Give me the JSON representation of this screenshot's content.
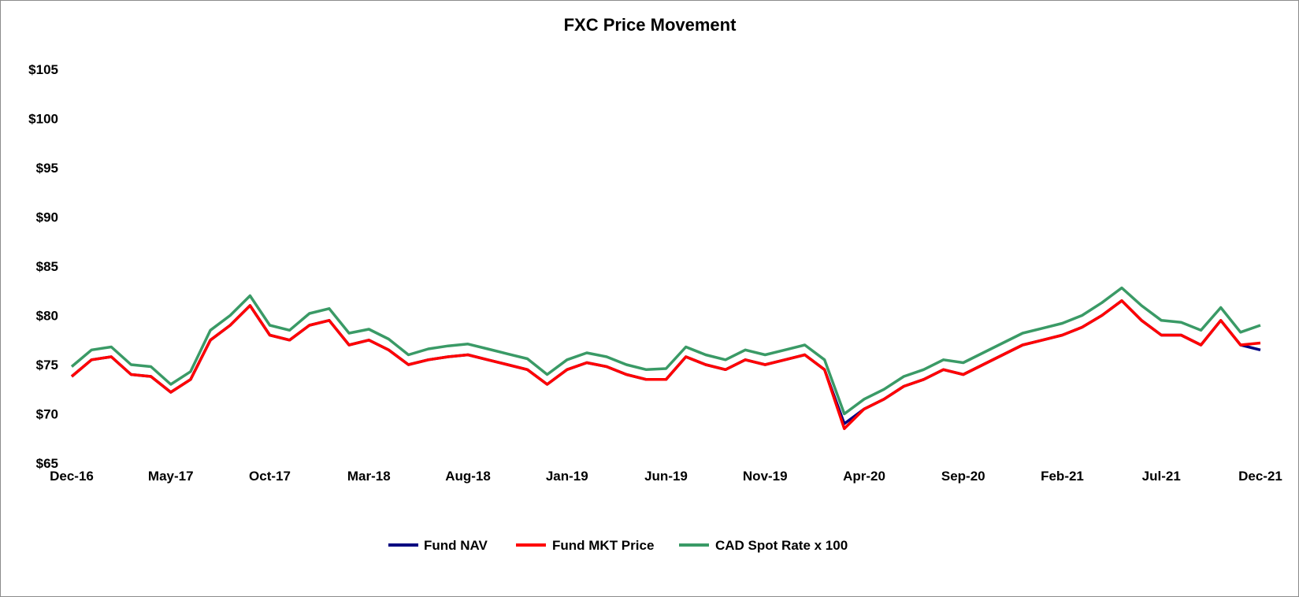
{
  "chart_data": {
    "type": "line",
    "title": "FXC Price Movement",
    "xlabel": "",
    "ylabel": "",
    "ylim": [
      65,
      105
    ],
    "grid": false,
    "legend_position": "bottom",
    "y_ticks": [
      "$65",
      "$70",
      "$75",
      "$80",
      "$85",
      "$90",
      "$95",
      "$100",
      "$105"
    ],
    "y_tick_values": [
      65,
      70,
      75,
      80,
      85,
      90,
      95,
      100,
      105
    ],
    "x_ticks": [
      "Dec-16",
      "May-17",
      "Oct-17",
      "Mar-18",
      "Aug-18",
      "Jan-19",
      "Jun-19",
      "Nov-19",
      "Apr-20",
      "Sep-20",
      "Feb-21",
      "Jul-21",
      "Dec-21"
    ],
    "x": [
      "Dec-16",
      "Jan-17",
      "Feb-17",
      "Mar-17",
      "Apr-17",
      "May-17",
      "Jun-17",
      "Jul-17",
      "Aug-17",
      "Sep-17",
      "Oct-17",
      "Nov-17",
      "Dec-17",
      "Jan-18",
      "Feb-18",
      "Mar-18",
      "Apr-18",
      "May-18",
      "Jun-18",
      "Jul-18",
      "Aug-18",
      "Sep-18",
      "Oct-18",
      "Nov-18",
      "Dec-18",
      "Jan-19",
      "Feb-19",
      "Mar-19",
      "Apr-19",
      "May-19",
      "Jun-19",
      "Jul-19",
      "Aug-19",
      "Sep-19",
      "Oct-19",
      "Nov-19",
      "Dec-19",
      "Jan-20",
      "Feb-20",
      "Mar-20",
      "Apr-20",
      "May-20",
      "Jun-20",
      "Jul-20",
      "Aug-20",
      "Sep-20",
      "Oct-20",
      "Nov-20",
      "Dec-20",
      "Jan-21",
      "Feb-21",
      "Mar-21",
      "Apr-21",
      "May-21",
      "Jun-21",
      "Jul-21",
      "Aug-21",
      "Sep-21",
      "Oct-21",
      "Nov-21",
      "Dec-21"
    ],
    "series": [
      {
        "name": "Fund NAV",
        "color": "#000080",
        "values": [
          73.8,
          75.5,
          75.8,
          74.0,
          73.8,
          72.2,
          73.5,
          77.5,
          79.0,
          81.0,
          78.0,
          77.5,
          79.0,
          79.5,
          77.0,
          77.5,
          76.5,
          75.0,
          75.5,
          75.8,
          76.0,
          75.5,
          75.0,
          74.5,
          73.0,
          74.5,
          75.2,
          74.8,
          74.0,
          73.5,
          73.5,
          75.8,
          75.0,
          74.5,
          75.5,
          75.0,
          75.5,
          76.0,
          74.5,
          69.0,
          70.5,
          71.5,
          72.8,
          73.5,
          74.5,
          74.0,
          75.0,
          76.0,
          77.0,
          77.5,
          78.0,
          78.8,
          80.0,
          81.5,
          79.5,
          78.0,
          78.0,
          77.0,
          79.5,
          77.0,
          76.5
        ]
      },
      {
        "name": "Fund MKT Price",
        "color": "#ff0000",
        "values": [
          73.8,
          75.5,
          75.8,
          74.0,
          73.8,
          72.2,
          73.5,
          77.5,
          79.0,
          81.0,
          78.0,
          77.5,
          79.0,
          79.5,
          77.0,
          77.5,
          76.5,
          75.0,
          75.5,
          75.8,
          76.0,
          75.5,
          75.0,
          74.5,
          73.0,
          74.5,
          75.2,
          74.8,
          74.0,
          73.5,
          73.5,
          75.8,
          75.0,
          74.5,
          75.5,
          75.0,
          75.5,
          76.0,
          74.5,
          68.5,
          70.5,
          71.5,
          72.8,
          73.5,
          74.5,
          74.0,
          75.0,
          76.0,
          77.0,
          77.5,
          78.0,
          78.8,
          80.0,
          81.5,
          79.5,
          78.0,
          78.0,
          77.0,
          79.5,
          77.0,
          77.2
        ]
      },
      {
        "name": "CAD Spot Rate x 100",
        "color": "#3a9a66",
        "values": [
          74.8,
          76.5,
          76.8,
          75.0,
          74.8,
          73.0,
          74.3,
          78.5,
          80.0,
          82.0,
          79.0,
          78.5,
          80.2,
          80.7,
          78.2,
          78.6,
          77.6,
          76.0,
          76.6,
          76.9,
          77.1,
          76.6,
          76.1,
          75.6,
          74.0,
          75.5,
          76.2,
          75.8,
          75.0,
          74.5,
          74.6,
          76.8,
          76.0,
          75.5,
          76.5,
          76.0,
          76.5,
          77.0,
          75.5,
          70.0,
          71.5,
          72.5,
          73.8,
          74.5,
          75.5,
          75.2,
          76.2,
          77.2,
          78.2,
          78.7,
          79.2,
          80.0,
          81.3,
          82.8,
          81.0,
          79.5,
          79.3,
          78.5,
          80.8,
          78.3,
          79.0
        ]
      }
    ]
  }
}
